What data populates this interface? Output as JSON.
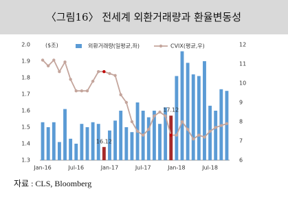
{
  "chart_data": {
    "type": "bar_line",
    "title": "〈그림16〉 전세계 외환거래량과 환율변동성",
    "y_label": "($조)",
    "source": "자료 : CLS, Bloomberg",
    "categories": [
      "Jan-16",
      null,
      null,
      null,
      null,
      null,
      "Jul-16",
      null,
      null,
      null,
      null,
      null,
      "Jan-17",
      null,
      null,
      null,
      null,
      null,
      "Jul-17",
      null,
      null,
      null,
      null,
      null,
      "Jan-18",
      null,
      null,
      null,
      null,
      null,
      "Jul-18",
      null,
      null,
      null
    ],
    "series": [
      {
        "name": "외환거래량(일평균,좌)",
        "color": "#5b9bd5",
        "type": "bar",
        "colors": [
          "#5b9bd5",
          "#5b9bd5",
          "#5b9bd5",
          "#5b9bd5",
          "#5b9bd5",
          "#5b9bd5",
          "#5b9bd5",
          "#5b9bd5",
          "#5b9bd5",
          "#5b9bd5",
          "#5b9bd5",
          "#a52a2a",
          "#5b9bd5",
          "#5b9bd5",
          "#5b9bd5",
          "#5b9bd5",
          "#5b9bd5",
          "#5b9bd5",
          "#5b9bd5",
          "#5b9bd5",
          "#5b9bd5",
          "#5b9bd5",
          "#5b9bd5",
          "#a52a2a",
          "#5b9bd5",
          "#5b9bd5",
          "#5b9bd5",
          "#5b9bd5",
          "#5b9bd5",
          "#5b9bd5",
          "#5b9bd5",
          "#5b9bd5",
          "#5b9bd5",
          "#5b9bd5"
        ],
        "values": [
          1.53,
          1.5,
          1.53,
          1.41,
          1.61,
          1.43,
          1.4,
          1.52,
          1.5,
          1.53,
          1.52,
          1.38,
          1.48,
          1.54,
          1.6,
          1.5,
          1.47,
          1.65,
          1.6,
          1.56,
          1.6,
          1.52,
          1.62,
          1.57,
          1.81,
          1.96,
          1.89,
          1.82,
          1.81,
          1.9,
          1.63,
          1.6,
          1.73,
          1.72
        ]
      },
      {
        "name": "CVIX(평균,우)",
        "color": "#c4a59c",
        "type": "line",
        "axis": "y2",
        "colors": [
          "#c4a59c",
          "#c4a59c",
          "#c4a59c",
          "#c4a59c",
          "#c4a59c",
          "#c4a59c",
          "#c4a59c",
          "#c4a59c",
          "#c4a59c",
          "#c4a59c",
          "#c4a59c",
          "#c00000",
          "#c4a59c",
          "#c4a59c",
          "#c4a59c",
          "#c4a59c",
          "#c4a59c",
          "#c4a59c",
          "#c4a59c",
          "#c4a59c",
          "#c4a59c",
          "#c4a59c",
          "#c4a59c",
          "#c00000",
          "#c4a59c",
          "#c4a59c",
          "#c4a59c",
          "#c4a59c",
          "#c4a59c",
          "#c4a59c",
          "#c4a59c",
          "#c4a59c",
          "#c4a59c",
          "#c4a59c"
        ],
        "values": [
          11.2,
          10.9,
          11.2,
          10.6,
          11.1,
          10.2,
          9.6,
          9.6,
          9.6,
          10.1,
          10.6,
          10.6,
          10.5,
          10.4,
          9.4,
          9.0,
          8.0,
          7.5,
          7.3,
          7.6,
          8.3,
          8.5,
          8.3,
          7.3,
          7.3,
          8.0,
          7.6,
          7.1,
          7.3,
          7.2,
          7.5,
          7.7,
          7.8,
          7.9
        ]
      }
    ],
    "annotations": [
      {
        "text": "16.12",
        "index": 11
      },
      {
        "text": "17.12",
        "index": 23
      }
    ],
    "ylim": [
      1.3,
      2.0
    ],
    "yticks": [
      1.3,
      1.4,
      1.5,
      1.6,
      1.7,
      1.8,
      1.9,
      {
        "value": 2,
        "label": "2.0"
      }
    ],
    "y2lim": [
      6,
      12
    ],
    "y2ticks": [
      6,
      7,
      8,
      9,
      10,
      11,
      12
    ]
  }
}
